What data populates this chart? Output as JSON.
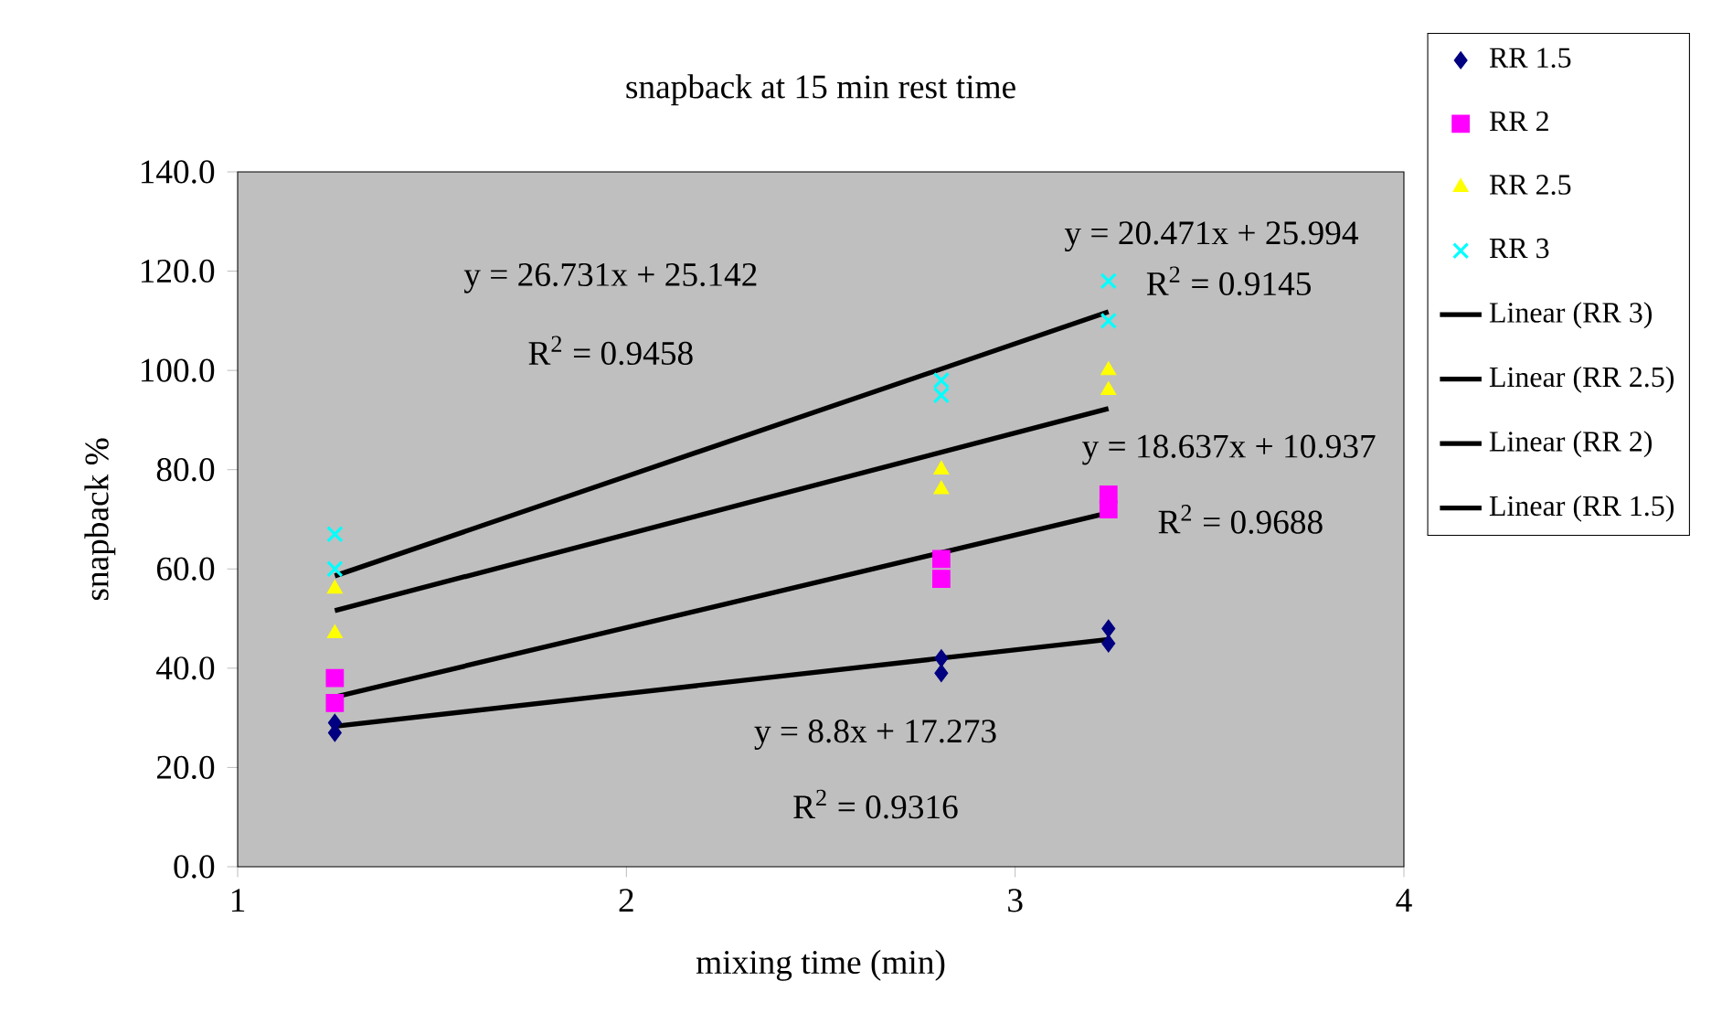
{
  "chart_data": {
    "type": "scatter",
    "title": "snapback at 15 min rest time",
    "xlabel": "mixing time (min)",
    "ylabel": "snapback %",
    "xlim": [
      1,
      4
    ],
    "xticks": [
      1,
      2,
      3,
      4
    ],
    "ylim": [
      0,
      140
    ],
    "yticks": [
      {
        "value": 0,
        "label": "0.0"
      },
      {
        "value": 20,
        "label": "20.0"
      },
      {
        "value": 40,
        "label": "40.0"
      },
      {
        "value": 60,
        "label": "60.0"
      },
      {
        "value": 80,
        "label": "80.0"
      },
      {
        "value": 100,
        "label": "100.0"
      },
      {
        "value": 120,
        "label": "120.0"
      },
      {
        "value": 140,
        "label": "140.0"
      }
    ],
    "grid": false,
    "legend": "right",
    "series": [
      {
        "name": "RR 1.5",
        "color": "#000080",
        "marker": "diamond",
        "x": [
          1.25,
          1.25,
          2.81,
          2.81,
          3.24,
          3.24
        ],
        "values": [
          29,
          27,
          42,
          39,
          48,
          45
        ]
      },
      {
        "name": "RR 2",
        "color": "#ff00ff",
        "marker": "square",
        "x": [
          1.25,
          1.25,
          2.81,
          2.81,
          3.24,
          3.24
        ],
        "values": [
          38,
          33,
          62,
          58,
          75,
          72
        ]
      },
      {
        "name": "RR 2.5",
        "color": "#ffff00",
        "marker": "triangle",
        "x": [
          1.25,
          1.25,
          2.81,
          2.81,
          3.24,
          3.24
        ],
        "values": [
          56,
          47,
          80,
          76,
          100,
          96
        ]
      },
      {
        "name": "RR 3",
        "color": "#00ffff",
        "marker": "cross",
        "x": [
          1.25,
          1.25,
          2.81,
          2.81,
          3.24,
          3.24
        ],
        "values": [
          67,
          60,
          98,
          95,
          118,
          110
        ]
      },
      {
        "name": "Linear (RR 3)",
        "type": "line",
        "color": "#000000",
        "marker": "none",
        "x": [
          1.25,
          3.24
        ],
        "values": [
          58.6,
          111.8
        ]
      },
      {
        "name": "Linear (RR 2.5)",
        "type": "line",
        "color": "#000000",
        "marker": "none",
        "x": [
          1.25,
          3.24
        ],
        "values": [
          51.6,
          92.3
        ]
      },
      {
        "name": "Linear (RR 2)",
        "type": "line",
        "color": "#000000",
        "marker": "none",
        "x": [
          1.25,
          3.24
        ],
        "values": [
          34.2,
          71.3
        ]
      },
      {
        "name": "Linear (RR 1.5)",
        "type": "line",
        "color": "#000000",
        "marker": "none",
        "x": [
          1.25,
          3.24
        ],
        "values": [
          28.3,
          45.8
        ]
      }
    ],
    "annotations": [
      "y = 26.731x + 25.142",
      "R$^{2}$ = 0.9458",
      "y = 20.471x + 25.994",
      "R$^{2}$ = 0.9145",
      "y = 18.637x + 10.937",
      "R$^{2}$ = 0.9688",
      "y = 8.8x + 17.273",
      "R$^{2}$ = 0.9316"
    ]
  }
}
